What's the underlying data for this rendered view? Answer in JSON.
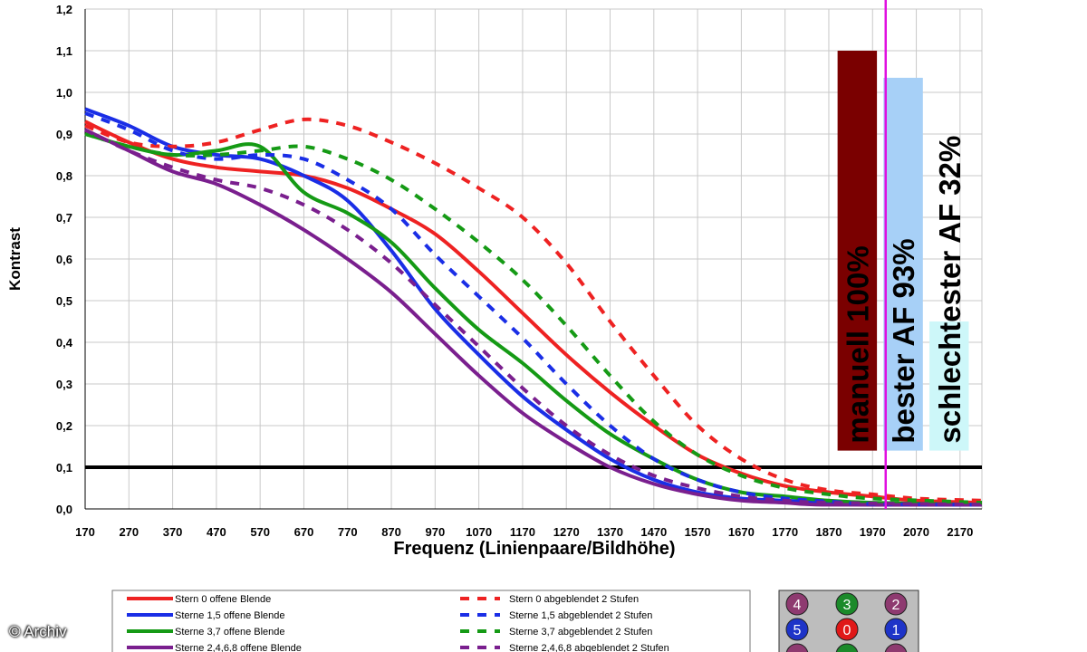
{
  "chart_data": {
    "type": "line",
    "xlabel": "Frequenz (Linienpaare/Bildhöhe)",
    "ylabel": "Kontrast",
    "xlim": [
      170,
      2220
    ],
    "ylim": [
      0,
      1.2
    ],
    "x_ticks": [
      "170",
      "270",
      "370",
      "470",
      "570",
      "670",
      "770",
      "870",
      "970",
      "1070",
      "1170",
      "1270",
      "1370",
      "1470",
      "1570",
      "1670",
      "1770",
      "1870",
      "1970",
      "2070",
      "2170"
    ],
    "y_ticks": [
      "0,0",
      "0,1",
      "0,2",
      "0,3",
      "0,4",
      "0,5",
      "0,6",
      "0,7",
      "0,8",
      "0,9",
      "1,0",
      "1,1",
      "1,2"
    ],
    "grid": true,
    "threshold": 0.1,
    "vertical_marker_x": 2000,
    "series": [
      {
        "name": "Stern 0 offene Blende",
        "color": "#ee2222",
        "dash": false,
        "points": [
          [
            170,
            0.93
          ],
          [
            270,
            0.88
          ],
          [
            370,
            0.84
          ],
          [
            470,
            0.82
          ],
          [
            570,
            0.81
          ],
          [
            670,
            0.8
          ],
          [
            770,
            0.77
          ],
          [
            870,
            0.72
          ],
          [
            970,
            0.66
          ],
          [
            1070,
            0.57
          ],
          [
            1170,
            0.47
          ],
          [
            1270,
            0.37
          ],
          [
            1370,
            0.28
          ],
          [
            1470,
            0.2
          ],
          [
            1570,
            0.13
          ],
          [
            1670,
            0.085
          ],
          [
            1770,
            0.055
          ],
          [
            1870,
            0.04
          ],
          [
            1970,
            0.03
          ],
          [
            2070,
            0.02
          ],
          [
            2220,
            0.015
          ]
        ]
      },
      {
        "name": "Sterne 1,5 offene Blende",
        "color": "#1a2ee6",
        "dash": false,
        "points": [
          [
            170,
            0.96
          ],
          [
            270,
            0.92
          ],
          [
            370,
            0.87
          ],
          [
            470,
            0.85
          ],
          [
            570,
            0.84
          ],
          [
            670,
            0.8
          ],
          [
            770,
            0.74
          ],
          [
            870,
            0.62
          ],
          [
            970,
            0.48
          ],
          [
            1070,
            0.37
          ],
          [
            1170,
            0.27
          ],
          [
            1270,
            0.19
          ],
          [
            1370,
            0.12
          ],
          [
            1470,
            0.07
          ],
          [
            1570,
            0.04
          ],
          [
            1670,
            0.025
          ],
          [
            1770,
            0.02
          ],
          [
            1870,
            0.015
          ],
          [
            1970,
            0.01
          ],
          [
            2220,
            0.01
          ]
        ]
      },
      {
        "name": "Sterne 3,7 offene Blende",
        "color": "#159a15",
        "dash": false,
        "points": [
          [
            170,
            0.9
          ],
          [
            270,
            0.87
          ],
          [
            370,
            0.85
          ],
          [
            470,
            0.86
          ],
          [
            570,
            0.87
          ],
          [
            670,
            0.76
          ],
          [
            770,
            0.71
          ],
          [
            870,
            0.64
          ],
          [
            970,
            0.53
          ],
          [
            1070,
            0.43
          ],
          [
            1170,
            0.35
          ],
          [
            1270,
            0.26
          ],
          [
            1370,
            0.18
          ],
          [
            1470,
            0.12
          ],
          [
            1570,
            0.07
          ],
          [
            1670,
            0.04
          ],
          [
            1770,
            0.03
          ],
          [
            1870,
            0.02
          ],
          [
            1970,
            0.015
          ],
          [
            2220,
            0.01
          ]
        ]
      },
      {
        "name": "Sterne 2,4,6,8 offene Blende",
        "color": "#7a1f8e",
        "dash": false,
        "points": [
          [
            170,
            0.91
          ],
          [
            270,
            0.86
          ],
          [
            370,
            0.81
          ],
          [
            470,
            0.78
          ],
          [
            570,
            0.73
          ],
          [
            670,
            0.67
          ],
          [
            770,
            0.6
          ],
          [
            870,
            0.52
          ],
          [
            970,
            0.42
          ],
          [
            1070,
            0.32
          ],
          [
            1170,
            0.23
          ],
          [
            1270,
            0.16
          ],
          [
            1370,
            0.1
          ],
          [
            1470,
            0.06
          ],
          [
            1570,
            0.035
          ],
          [
            1670,
            0.02
          ],
          [
            1770,
            0.015
          ],
          [
            1870,
            0.01
          ],
          [
            2220,
            0.01
          ]
        ]
      },
      {
        "name": "Stern 0 abgeblendet 2 Stufen",
        "color": "#ee2222",
        "dash": true,
        "points": [
          [
            170,
            0.92
          ],
          [
            270,
            0.88
          ],
          [
            370,
            0.87
          ],
          [
            470,
            0.88
          ],
          [
            570,
            0.91
          ],
          [
            670,
            0.935
          ],
          [
            770,
            0.92
          ],
          [
            870,
            0.88
          ],
          [
            970,
            0.83
          ],
          [
            1070,
            0.77
          ],
          [
            1170,
            0.7
          ],
          [
            1270,
            0.59
          ],
          [
            1370,
            0.45
          ],
          [
            1470,
            0.32
          ],
          [
            1570,
            0.2
          ],
          [
            1670,
            0.12
          ],
          [
            1770,
            0.07
          ],
          [
            1870,
            0.045
          ],
          [
            1970,
            0.035
          ],
          [
            2070,
            0.025
          ],
          [
            2220,
            0.02
          ]
        ]
      },
      {
        "name": "Stern 1,5 abgeblendet 2 Stufen",
        "color": "#1a2ee6",
        "dash": true,
        "points": [
          [
            170,
            0.95
          ],
          [
            270,
            0.91
          ],
          [
            370,
            0.86
          ],
          [
            470,
            0.84
          ],
          [
            570,
            0.85
          ],
          [
            670,
            0.84
          ],
          [
            770,
            0.79
          ],
          [
            870,
            0.72
          ],
          [
            970,
            0.61
          ],
          [
            1070,
            0.51
          ],
          [
            1170,
            0.41
          ],
          [
            1270,
            0.3
          ],
          [
            1370,
            0.2
          ],
          [
            1470,
            0.12
          ],
          [
            1570,
            0.07
          ],
          [
            1670,
            0.04
          ],
          [
            1770,
            0.025
          ],
          [
            1870,
            0.018
          ],
          [
            1970,
            0.012
          ],
          [
            2220,
            0.01
          ]
        ]
      },
      {
        "name": "Sterne 3,7 abgeblendet 2 Stufen",
        "color": "#159a15",
        "dash": true,
        "points": [
          [
            170,
            0.9
          ],
          [
            270,
            0.87
          ],
          [
            370,
            0.85
          ],
          [
            470,
            0.85
          ],
          [
            570,
            0.86
          ],
          [
            670,
            0.87
          ],
          [
            770,
            0.84
          ],
          [
            870,
            0.79
          ],
          [
            970,
            0.72
          ],
          [
            1070,
            0.64
          ],
          [
            1170,
            0.55
          ],
          [
            1270,
            0.44
          ],
          [
            1370,
            0.32
          ],
          [
            1470,
            0.21
          ],
          [
            1570,
            0.13
          ],
          [
            1670,
            0.08
          ],
          [
            1770,
            0.05
          ],
          [
            1870,
            0.035
          ],
          [
            1970,
            0.025
          ],
          [
            2220,
            0.015
          ]
        ]
      },
      {
        "name": "Sterne 2,4,6,8 abgeblendet 2 Stufen",
        "color": "#7a1f8e",
        "dash": true,
        "points": [
          [
            170,
            0.91
          ],
          [
            270,
            0.86
          ],
          [
            370,
            0.82
          ],
          [
            470,
            0.79
          ],
          [
            570,
            0.77
          ],
          [
            670,
            0.73
          ],
          [
            770,
            0.67
          ],
          [
            870,
            0.59
          ],
          [
            970,
            0.49
          ],
          [
            1070,
            0.39
          ],
          [
            1170,
            0.29
          ],
          [
            1270,
            0.2
          ],
          [
            1370,
            0.13
          ],
          [
            1470,
            0.08
          ],
          [
            1570,
            0.05
          ],
          [
            1670,
            0.03
          ],
          [
            1770,
            0.02
          ],
          [
            1870,
            0.015
          ],
          [
            2220,
            0.01
          ]
        ]
      }
    ],
    "bars": [
      {
        "label": "manuell 100%",
        "value": 1.1,
        "bottom": 0.14,
        "x_from": 1890,
        "x_to": 1980,
        "color": "#7a0000"
      },
      {
        "label": "bester AF 93%",
        "value": 1.035,
        "bottom": 0.14,
        "x_from": 1995,
        "x_to": 2085,
        "color": "#a7d0f7"
      },
      {
        "label": "schlechtester AF 32%",
        "value": 0.45,
        "bottom": 0.14,
        "x_from": 2100,
        "x_to": 2190,
        "color": "#cdf7f9"
      }
    ]
  },
  "legend": {
    "items_left": [
      "Stern 0 offene Blende",
      "Sterne 1,5 offene Blende",
      "Sterne 3,7 offene Blende",
      "Sterne 2,4,6,8 offene Blende"
    ],
    "items_right": [
      "Stern 0 abgeblendet 2 Stufen",
      "Sterne 1,5 abgeblendet 2 Stufen",
      "Sterne 3,7 abgeblendet 2 Stufen",
      "Sterne 2,4,6,8 abgeblendet 2 Stufen"
    ]
  },
  "star_grid": {
    "balls": [
      {
        "label": "4",
        "color": "#8e3a70"
      },
      {
        "label": "3",
        "color": "#1b8a2a"
      },
      {
        "label": "2",
        "color": "#8e3a70"
      },
      {
        "label": "5",
        "color": "#1e34c8"
      },
      {
        "label": "0",
        "color": "#e01818"
      },
      {
        "label": "1",
        "color": "#1e34c8"
      }
    ]
  },
  "watermark": "© Archiv"
}
